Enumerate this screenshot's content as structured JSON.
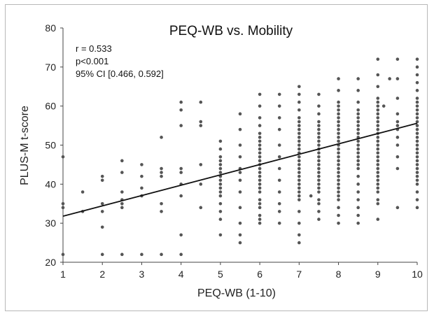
{
  "chart_data": {
    "type": "scatter",
    "title": "PEQ-WB vs. Mobility",
    "xlabel": "PEQ-WB (1-10)",
    "ylabel": "PLUS-M t-score",
    "xlim": [
      1,
      10
    ],
    "ylim": [
      20,
      80
    ],
    "x_ticks": [
      "1",
      "2",
      "3",
      "4",
      "5",
      "6",
      "7",
      "8",
      "9",
      "10"
    ],
    "y_ticks": [
      "20",
      "30",
      "40",
      "50",
      "60",
      "70",
      "80"
    ],
    "grid": false,
    "annotations": [
      "r = 0.533",
      "p<0.001",
      "95% CI [0.466, 0.592]"
    ],
    "trendline": {
      "x": [
        1,
        10
      ],
      "y": [
        31.8,
        55.6
      ]
    },
    "point_color": "#555555",
    "line_color": "#111111",
    "points": [
      [
        1,
        47
      ],
      [
        1,
        35
      ],
      [
        1,
        34
      ],
      [
        1,
        22
      ],
      [
        1.5,
        38
      ],
      [
        1.5,
        33
      ],
      [
        2,
        42
      ],
      [
        2,
        41
      ],
      [
        2,
        35
      ],
      [
        2,
        33
      ],
      [
        2,
        29
      ],
      [
        2,
        22
      ],
      [
        2.5,
        46
      ],
      [
        2.5,
        43
      ],
      [
        2.5,
        38
      ],
      [
        2.5,
        36
      ],
      [
        2.5,
        35
      ],
      [
        2.5,
        34
      ],
      [
        2.5,
        22
      ],
      [
        3,
        45
      ],
      [
        3,
        42
      ],
      [
        3,
        39
      ],
      [
        3,
        37
      ],
      [
        3,
        22
      ],
      [
        3.5,
        52
      ],
      [
        3.5,
        44
      ],
      [
        3.5,
        43
      ],
      [
        3.5,
        42
      ],
      [
        3.5,
        35
      ],
      [
        3.5,
        33
      ],
      [
        3.5,
        22
      ],
      [
        4,
        61
      ],
      [
        4,
        59
      ],
      [
        4,
        55
      ],
      [
        4,
        44
      ],
      [
        4,
        43
      ],
      [
        4,
        40
      ],
      [
        4,
        37
      ],
      [
        4,
        27
      ],
      [
        4,
        22
      ],
      [
        4.5,
        61
      ],
      [
        4.5,
        56
      ],
      [
        4.5,
        55
      ],
      [
        4.5,
        45
      ],
      [
        4.5,
        40
      ],
      [
        4.5,
        34
      ],
      [
        5,
        51
      ],
      [
        5,
        49
      ],
      [
        5,
        47
      ],
      [
        5,
        46
      ],
      [
        5,
        45
      ],
      [
        5,
        44
      ],
      [
        5,
        43
      ],
      [
        5,
        42
      ],
      [
        5,
        41
      ],
      [
        5,
        40
      ],
      [
        5,
        39
      ],
      [
        5,
        38
      ],
      [
        5,
        37
      ],
      [
        5,
        35
      ],
      [
        5,
        33
      ],
      [
        5,
        31
      ],
      [
        5,
        27
      ],
      [
        5.5,
        58
      ],
      [
        5.5,
        54
      ],
      [
        5.5,
        50
      ],
      [
        5.5,
        47
      ],
      [
        5.5,
        44
      ],
      [
        5.5,
        43
      ],
      [
        5.5,
        41
      ],
      [
        5.5,
        38
      ],
      [
        5.5,
        34
      ],
      [
        5.5,
        30
      ],
      [
        5.5,
        27
      ],
      [
        5.5,
        25
      ],
      [
        6,
        63
      ],
      [
        6,
        60
      ],
      [
        6,
        57
      ],
      [
        6,
        55
      ],
      [
        6,
        53
      ],
      [
        6,
        52
      ],
      [
        6,
        51
      ],
      [
        6,
        50
      ],
      [
        6,
        49
      ],
      [
        6,
        48
      ],
      [
        6,
        47
      ],
      [
        6,
        46
      ],
      [
        6,
        45
      ],
      [
        6,
        44
      ],
      [
        6,
        43
      ],
      [
        6,
        42
      ],
      [
        6,
        41
      ],
      [
        6,
        40
      ],
      [
        6,
        39
      ],
      [
        6,
        38
      ],
      [
        6,
        36
      ],
      [
        6,
        35
      ],
      [
        6,
        34
      ],
      [
        6,
        32
      ],
      [
        6,
        31
      ],
      [
        6,
        30
      ],
      [
        6.5,
        63
      ],
      [
        6.5,
        60
      ],
      [
        6.5,
        57
      ],
      [
        6.5,
        54
      ],
      [
        6.5,
        50
      ],
      [
        6.5,
        47
      ],
      [
        6.5,
        44
      ],
      [
        6.5,
        41
      ],
      [
        6.5,
        38
      ],
      [
        6.5,
        35
      ],
      [
        6.5,
        33
      ],
      [
        6.5,
        30
      ],
      [
        7,
        65
      ],
      [
        7,
        63
      ],
      [
        7,
        61
      ],
      [
        7,
        59
      ],
      [
        7,
        57
      ],
      [
        7,
        56
      ],
      [
        7,
        55
      ],
      [
        7,
        54
      ],
      [
        7,
        53
      ],
      [
        7,
        52
      ],
      [
        7,
        51
      ],
      [
        7,
        50
      ],
      [
        7,
        49
      ],
      [
        7,
        48
      ],
      [
        7,
        47
      ],
      [
        7,
        46
      ],
      [
        7,
        45
      ],
      [
        7,
        44
      ],
      [
        7,
        43
      ],
      [
        7,
        42
      ],
      [
        7,
        41
      ],
      [
        7,
        40
      ],
      [
        7,
        39
      ],
      [
        7,
        38
      ],
      [
        7,
        37
      ],
      [
        7,
        36
      ],
      [
        7,
        33
      ],
      [
        7,
        30
      ],
      [
        7,
        27
      ],
      [
        7,
        25
      ],
      [
        7.3,
        37
      ],
      [
        7.5,
        63
      ],
      [
        7.5,
        60
      ],
      [
        7.5,
        58
      ],
      [
        7.5,
        56
      ],
      [
        7.5,
        55
      ],
      [
        7.5,
        54
      ],
      [
        7.5,
        53
      ],
      [
        7.5,
        52
      ],
      [
        7.5,
        51
      ],
      [
        7.5,
        50
      ],
      [
        7.5,
        49
      ],
      [
        7.5,
        48
      ],
      [
        7.5,
        47
      ],
      [
        7.5,
        46
      ],
      [
        7.5,
        45
      ],
      [
        7.5,
        44
      ],
      [
        7.5,
        43
      ],
      [
        7.5,
        42
      ],
      [
        7.5,
        41
      ],
      [
        7.5,
        40
      ],
      [
        7.5,
        39
      ],
      [
        7.5,
        38
      ],
      [
        7.5,
        36
      ],
      [
        7.5,
        35
      ],
      [
        7.5,
        33
      ],
      [
        7.5,
        31
      ],
      [
        8,
        67
      ],
      [
        8,
        64
      ],
      [
        8,
        61
      ],
      [
        8,
        60
      ],
      [
        8,
        59
      ],
      [
        8,
        58
      ],
      [
        8,
        57
      ],
      [
        8,
        56
      ],
      [
        8,
        55
      ],
      [
        8,
        54
      ],
      [
        8,
        53
      ],
      [
        8,
        52
      ],
      [
        8,
        51
      ],
      [
        8,
        50
      ],
      [
        8,
        49
      ],
      [
        8,
        48
      ],
      [
        8,
        47
      ],
      [
        8,
        46
      ],
      [
        8,
        45
      ],
      [
        8,
        44
      ],
      [
        8,
        43
      ],
      [
        8,
        42
      ],
      [
        8,
        41
      ],
      [
        8,
        40
      ],
      [
        8,
        39
      ],
      [
        8,
        38
      ],
      [
        8,
        37
      ],
      [
        8,
        36
      ],
      [
        8,
        34
      ],
      [
        8,
        32
      ],
      [
        8,
        30
      ],
      [
        8.5,
        67
      ],
      [
        8.5,
        64
      ],
      [
        8.5,
        61
      ],
      [
        8.5,
        59
      ],
      [
        8.5,
        58
      ],
      [
        8.5,
        57
      ],
      [
        8.5,
        56
      ],
      [
        8.5,
        55
      ],
      [
        8.5,
        54
      ],
      [
        8.5,
        53
      ],
      [
        8.5,
        52
      ],
      [
        8.5,
        51
      ],
      [
        8.5,
        50
      ],
      [
        8.5,
        49
      ],
      [
        8.5,
        48
      ],
      [
        8.5,
        47
      ],
      [
        8.5,
        46
      ],
      [
        8.5,
        45
      ],
      [
        8.5,
        44
      ],
      [
        8.5,
        42
      ],
      [
        8.5,
        40
      ],
      [
        8.5,
        38
      ],
      [
        8.5,
        36
      ],
      [
        8.5,
        34
      ],
      [
        8.5,
        32
      ],
      [
        8.5,
        30
      ],
      [
        9,
        72
      ],
      [
        9,
        68
      ],
      [
        9,
        65
      ],
      [
        9,
        62
      ],
      [
        9,
        61
      ],
      [
        9,
        60
      ],
      [
        9,
        59
      ],
      [
        9,
        58
      ],
      [
        9,
        57
      ],
      [
        9,
        56
      ],
      [
        9,
        55
      ],
      [
        9,
        54
      ],
      [
        9,
        53
      ],
      [
        9,
        52
      ],
      [
        9,
        51
      ],
      [
        9,
        50
      ],
      [
        9,
        49
      ],
      [
        9,
        48
      ],
      [
        9,
        47
      ],
      [
        9,
        46
      ],
      [
        9,
        45
      ],
      [
        9,
        44
      ],
      [
        9,
        43
      ],
      [
        9,
        42
      ],
      [
        9,
        41
      ],
      [
        9,
        40
      ],
      [
        9,
        39
      ],
      [
        9,
        38
      ],
      [
        9,
        36
      ],
      [
        9,
        35
      ],
      [
        9,
        31
      ],
      [
        9.15,
        60
      ],
      [
        9.3,
        67
      ],
      [
        9.5,
        72
      ],
      [
        9.5,
        67
      ],
      [
        9.5,
        62
      ],
      [
        9.5,
        58
      ],
      [
        9.5,
        56
      ],
      [
        9.5,
        55
      ],
      [
        9.5,
        54
      ],
      [
        9.5,
        52
      ],
      [
        9.5,
        50
      ],
      [
        9.5,
        47
      ],
      [
        9.5,
        44
      ],
      [
        9.5,
        34
      ],
      [
        10,
        72
      ],
      [
        10,
        70
      ],
      [
        10,
        68
      ],
      [
        10,
        66
      ],
      [
        10,
        64
      ],
      [
        10,
        62
      ],
      [
        10,
        61
      ],
      [
        10,
        60
      ],
      [
        10,
        59
      ],
      [
        10,
        58
      ],
      [
        10,
        57
      ],
      [
        10,
        56
      ],
      [
        10,
        55
      ],
      [
        10,
        54
      ],
      [
        10,
        53
      ],
      [
        10,
        52
      ],
      [
        10,
        51
      ],
      [
        10,
        50
      ],
      [
        10,
        49
      ],
      [
        10,
        48
      ],
      [
        10,
        47
      ],
      [
        10,
        46
      ],
      [
        10,
        45
      ],
      [
        10,
        44
      ],
      [
        10,
        43
      ],
      [
        10,
        42
      ],
      [
        10,
        41
      ],
      [
        10,
        40
      ],
      [
        10,
        38
      ],
      [
        10,
        36
      ],
      [
        10,
        34
      ]
    ]
  }
}
